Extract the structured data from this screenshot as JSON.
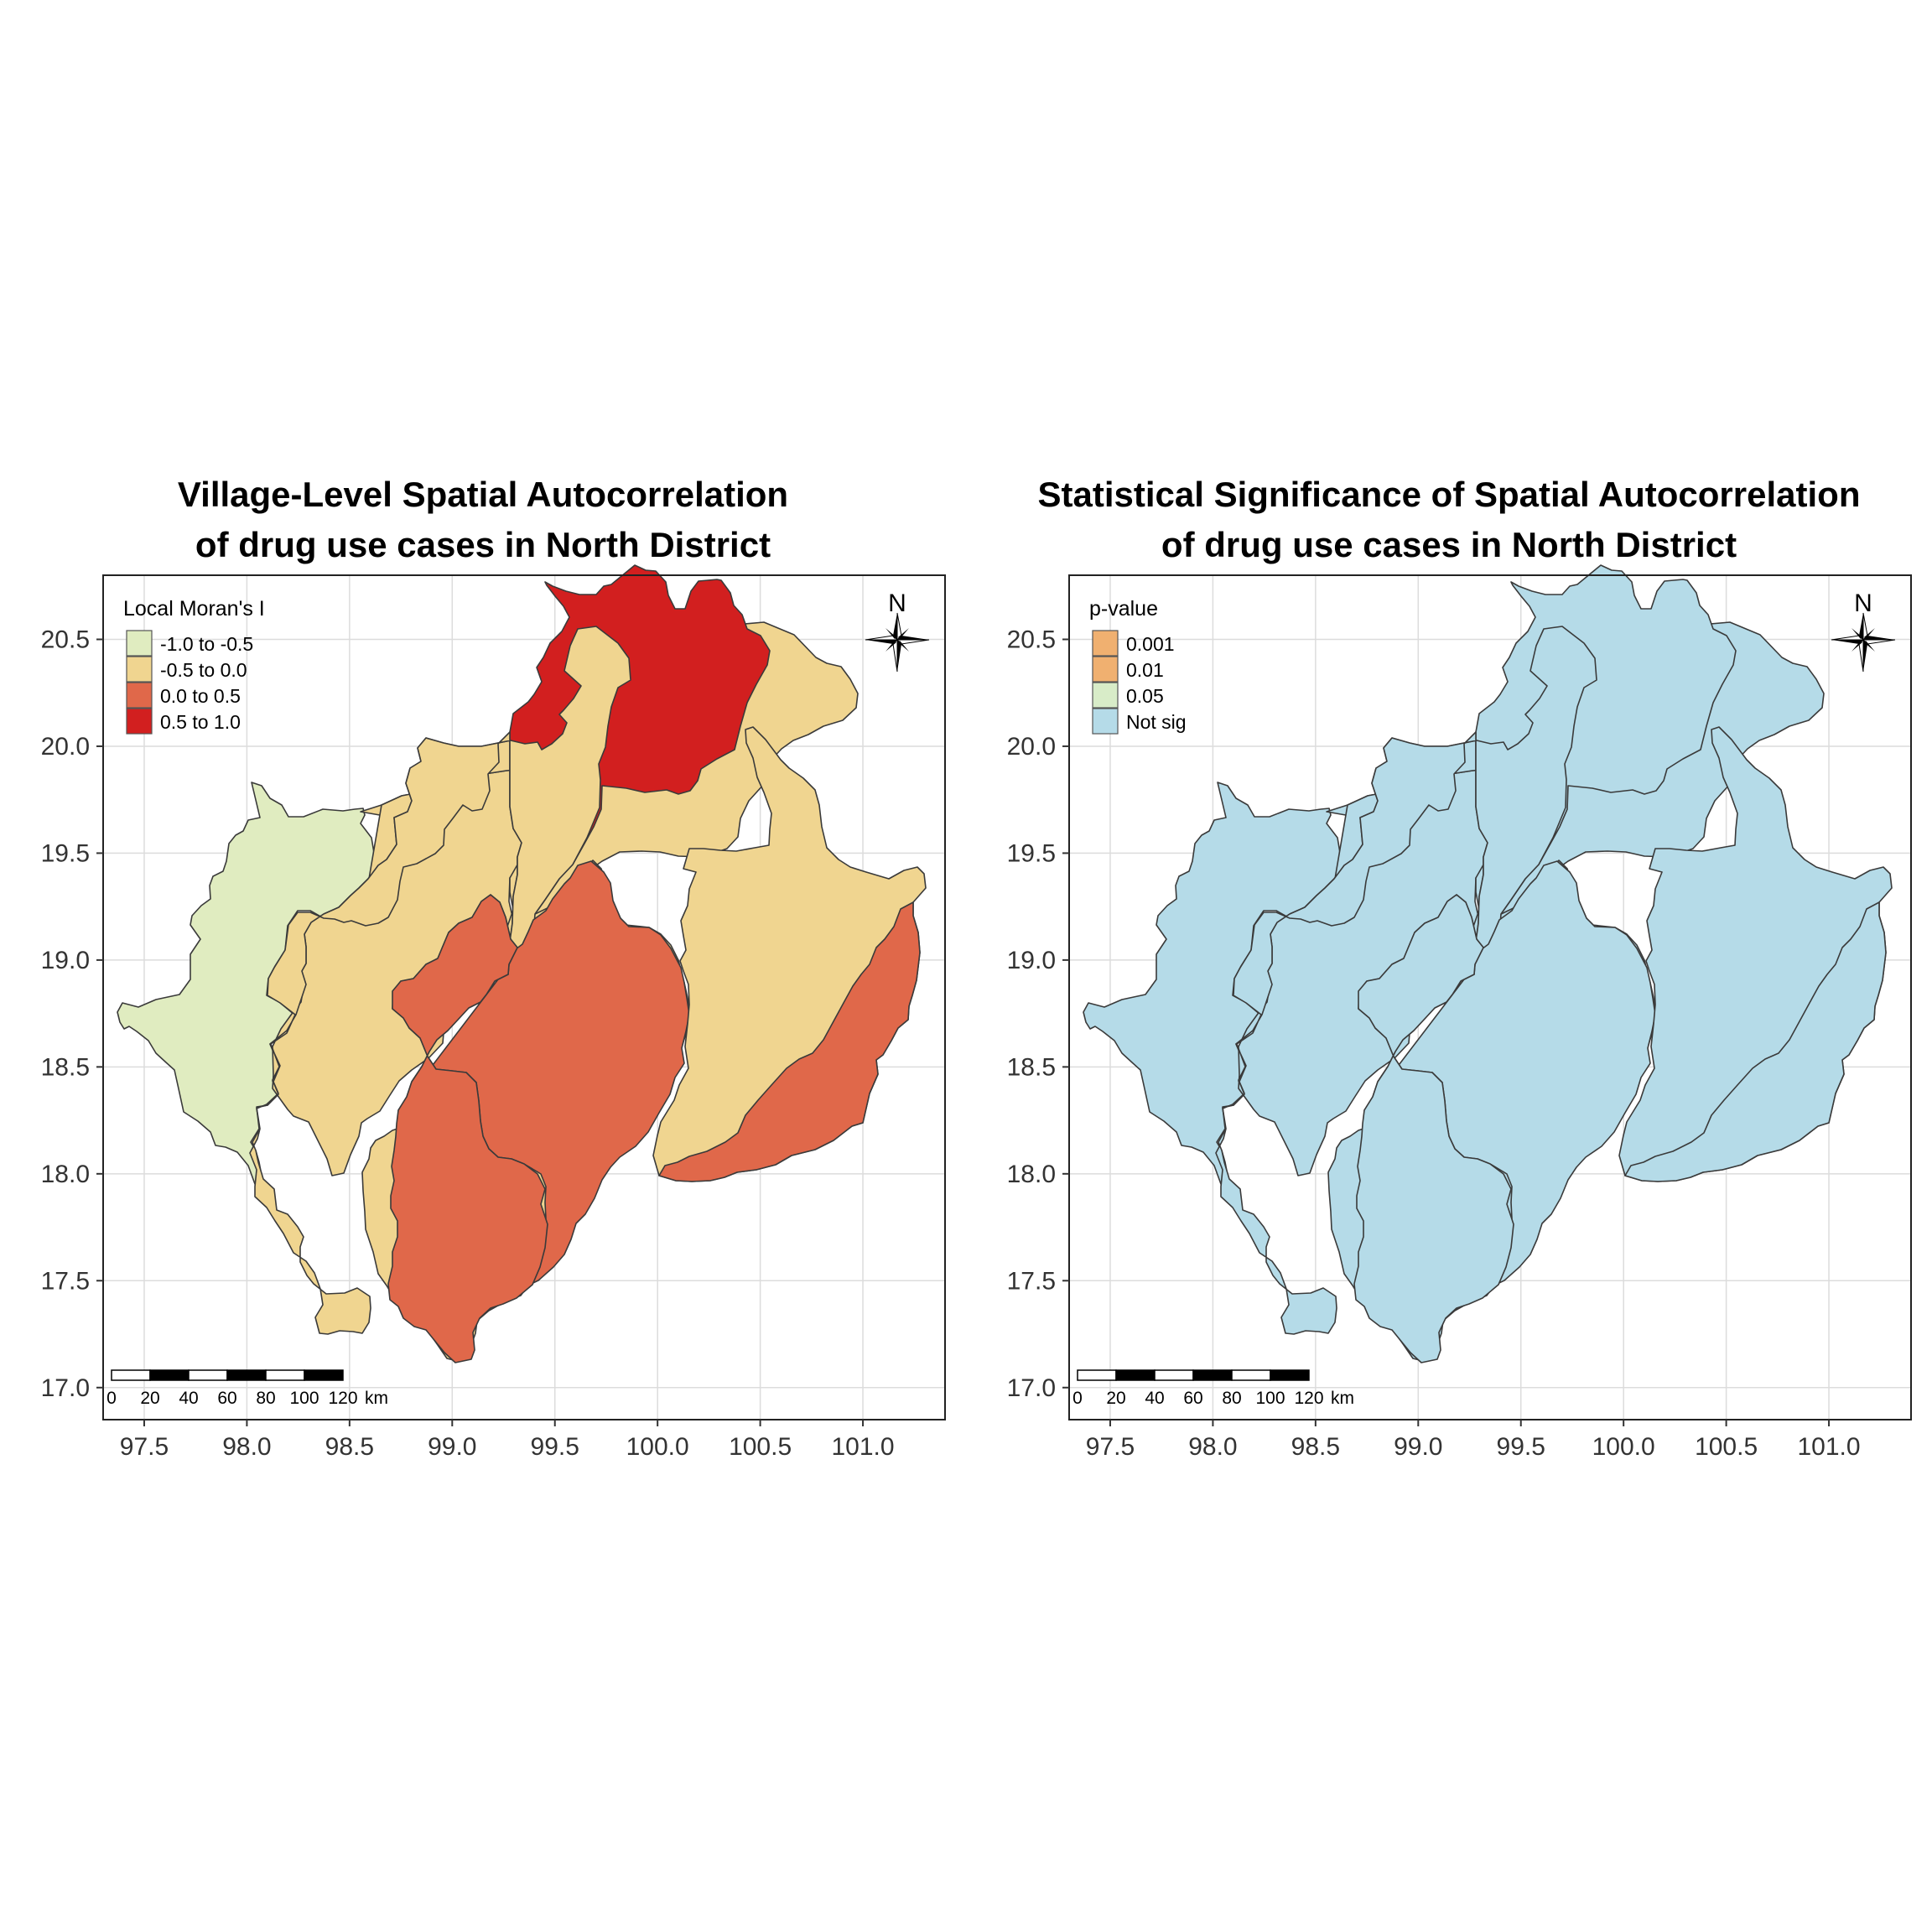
{
  "maps": [
    {
      "title_line1": "Village-Level Spatial Autocorrelation",
      "title_line2": "of drug use cases in North District",
      "legend_title": "Local Moran's I",
      "legend": [
        {
          "label": "-1.0 to -0.5",
          "color": "#e0ecc0"
        },
        {
          "label": "-0.5 to 0.0",
          "color": "#f0d590"
        },
        {
          "label": "0.0 to 0.5",
          "color": "#e0684a"
        },
        {
          "label": "0.5 to 1.0",
          "color": "#d21f1f"
        }
      ],
      "region_classes": [
        "-1.0 to -0.5",
        "-0.5 to 0.0",
        "-0.5 to 0.0",
        "0.5 to 1.0",
        "-0.5 to 0.0",
        "-0.5 to 0.0",
        "0.0 to 0.5",
        "0.0 to 0.5",
        "-0.5 to 0.0",
        "0.0 to 0.5"
      ]
    },
    {
      "title_line1": "Statistical Significance of Spatial Autocorrelation",
      "title_line2": "of drug use cases in North District",
      "legend_title": "p-value",
      "legend": [
        {
          "label": "0.001",
          "color": "#f0b070"
        },
        {
          "label": "0.01",
          "color": "#f0b070"
        },
        {
          "label": "0.05",
          "color": "#d8ecc8"
        },
        {
          "label": "Not sig",
          "color": "#b5dbe8"
        }
      ],
      "region_classes": [
        "Not sig",
        "Not sig",
        "Not sig",
        "Not sig",
        "Not sig",
        "Not sig",
        "Not sig",
        "Not sig",
        "Not sig",
        "Not sig"
      ]
    }
  ],
  "axes": {
    "x_ticks": [
      "97.5",
      "98.0",
      "98.5",
      "99.0",
      "99.5",
      "100.0",
      "100.5",
      "101.0"
    ],
    "y_ticks": [
      "17.0",
      "17.5",
      "18.0",
      "18.5",
      "19.0",
      "19.5",
      "20.0",
      "20.5"
    ],
    "xlim": [
      97.3,
      101.4
    ],
    "ylim": [
      16.85,
      20.8
    ]
  },
  "north_arrow": "N",
  "scale_bar": {
    "ticks": [
      "0",
      "20",
      "40",
      "60",
      "80",
      "100",
      "120"
    ],
    "unit": "km"
  }
}
